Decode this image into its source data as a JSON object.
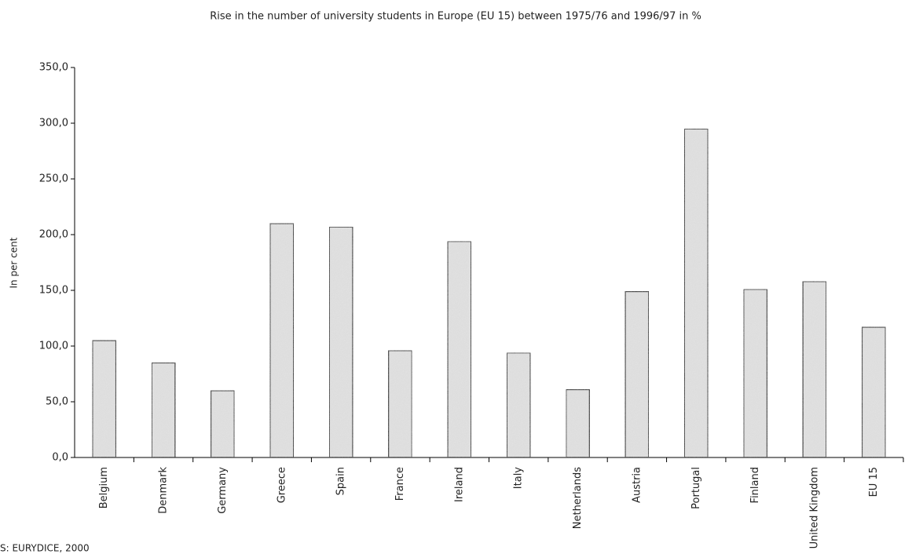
{
  "chart_data": {
    "type": "bar",
    "title": "Rise in the number of university students in Europe (EU 15) between 1975/76 and 1996/97 in %",
    "y_label": "In per cent",
    "source": "S: EURYDICE, 2000",
    "categories": [
      "Belgium",
      "Denmark",
      "Germany",
      "Greece",
      "Spain",
      "France",
      "Ireland",
      "Italy",
      "Netherlands",
      "Austria",
      "Portugal",
      "Finland",
      "United Kingdom",
      "EU 15"
    ],
    "values": [
      105,
      85,
      60,
      210,
      207,
      96,
      194,
      94,
      61,
      149,
      295,
      151,
      158,
      117
    ],
    "color": "#e4e4e4",
    "ylim": [
      0,
      350
    ],
    "yticks": [
      {
        "value": 0,
        "label": "0,0"
      },
      {
        "value": 50,
        "label": "50,0"
      },
      {
        "value": 100,
        "label": "100,0"
      },
      {
        "value": 150,
        "label": "150,0"
      },
      {
        "value": 200,
        "label": "200,0"
      },
      {
        "value": 250,
        "label": "250,0"
      },
      {
        "value": 300,
        "label": "300,0"
      },
      {
        "value": 350,
        "label": "350,0"
      }
    ],
    "grid": false
  }
}
